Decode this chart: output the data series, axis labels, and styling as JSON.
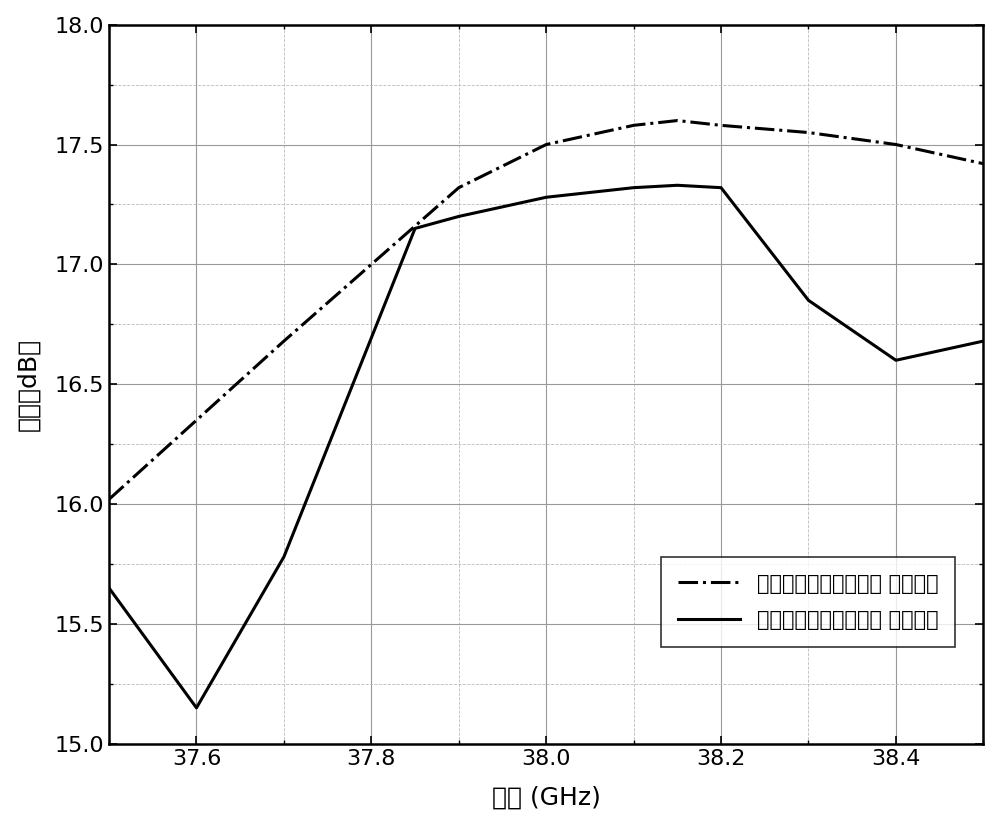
{
  "sim_x": [
    37.5,
    37.6,
    37.7,
    37.8,
    37.9,
    38.0,
    38.1,
    38.15,
    38.2,
    38.3,
    38.4,
    38.5
  ],
  "sim_y": [
    16.02,
    16.35,
    16.68,
    17.0,
    17.32,
    17.5,
    17.58,
    17.6,
    17.58,
    17.55,
    17.5,
    17.42
  ],
  "meas_x": [
    37.5,
    37.6,
    37.7,
    37.85,
    37.9,
    38.0,
    38.1,
    38.15,
    38.2,
    38.3,
    38.4,
    38.5
  ],
  "meas_y": [
    15.65,
    15.15,
    15.78,
    17.15,
    17.2,
    17.28,
    17.32,
    17.33,
    17.32,
    16.85,
    16.6,
    16.68
  ],
  "xlabel": "频率 (GHz)",
  "ylabel": "增益（dB）",
  "xlim": [
    37.5,
    38.5
  ],
  "ylim": [
    15.0,
    18.0
  ],
  "xticks": [
    37.6,
    37.8,
    38.0,
    38.2,
    38.4
  ],
  "yticks": [
    15.0,
    15.5,
    16.0,
    16.5,
    17.0,
    17.5,
    18.0
  ],
  "legend_sim": "中心馈电串馈微带天线 仿真结果",
  "legend_meas": "中心馈电串馈微带天线 实测结果",
  "line_color": "#000000",
  "background_color": "#ffffff",
  "major_grid_color": "#999999",
  "minor_grid_color": "#bbbbbb",
  "fontsize_ticks": 16,
  "fontsize_label": 18,
  "fontsize_legend": 15
}
